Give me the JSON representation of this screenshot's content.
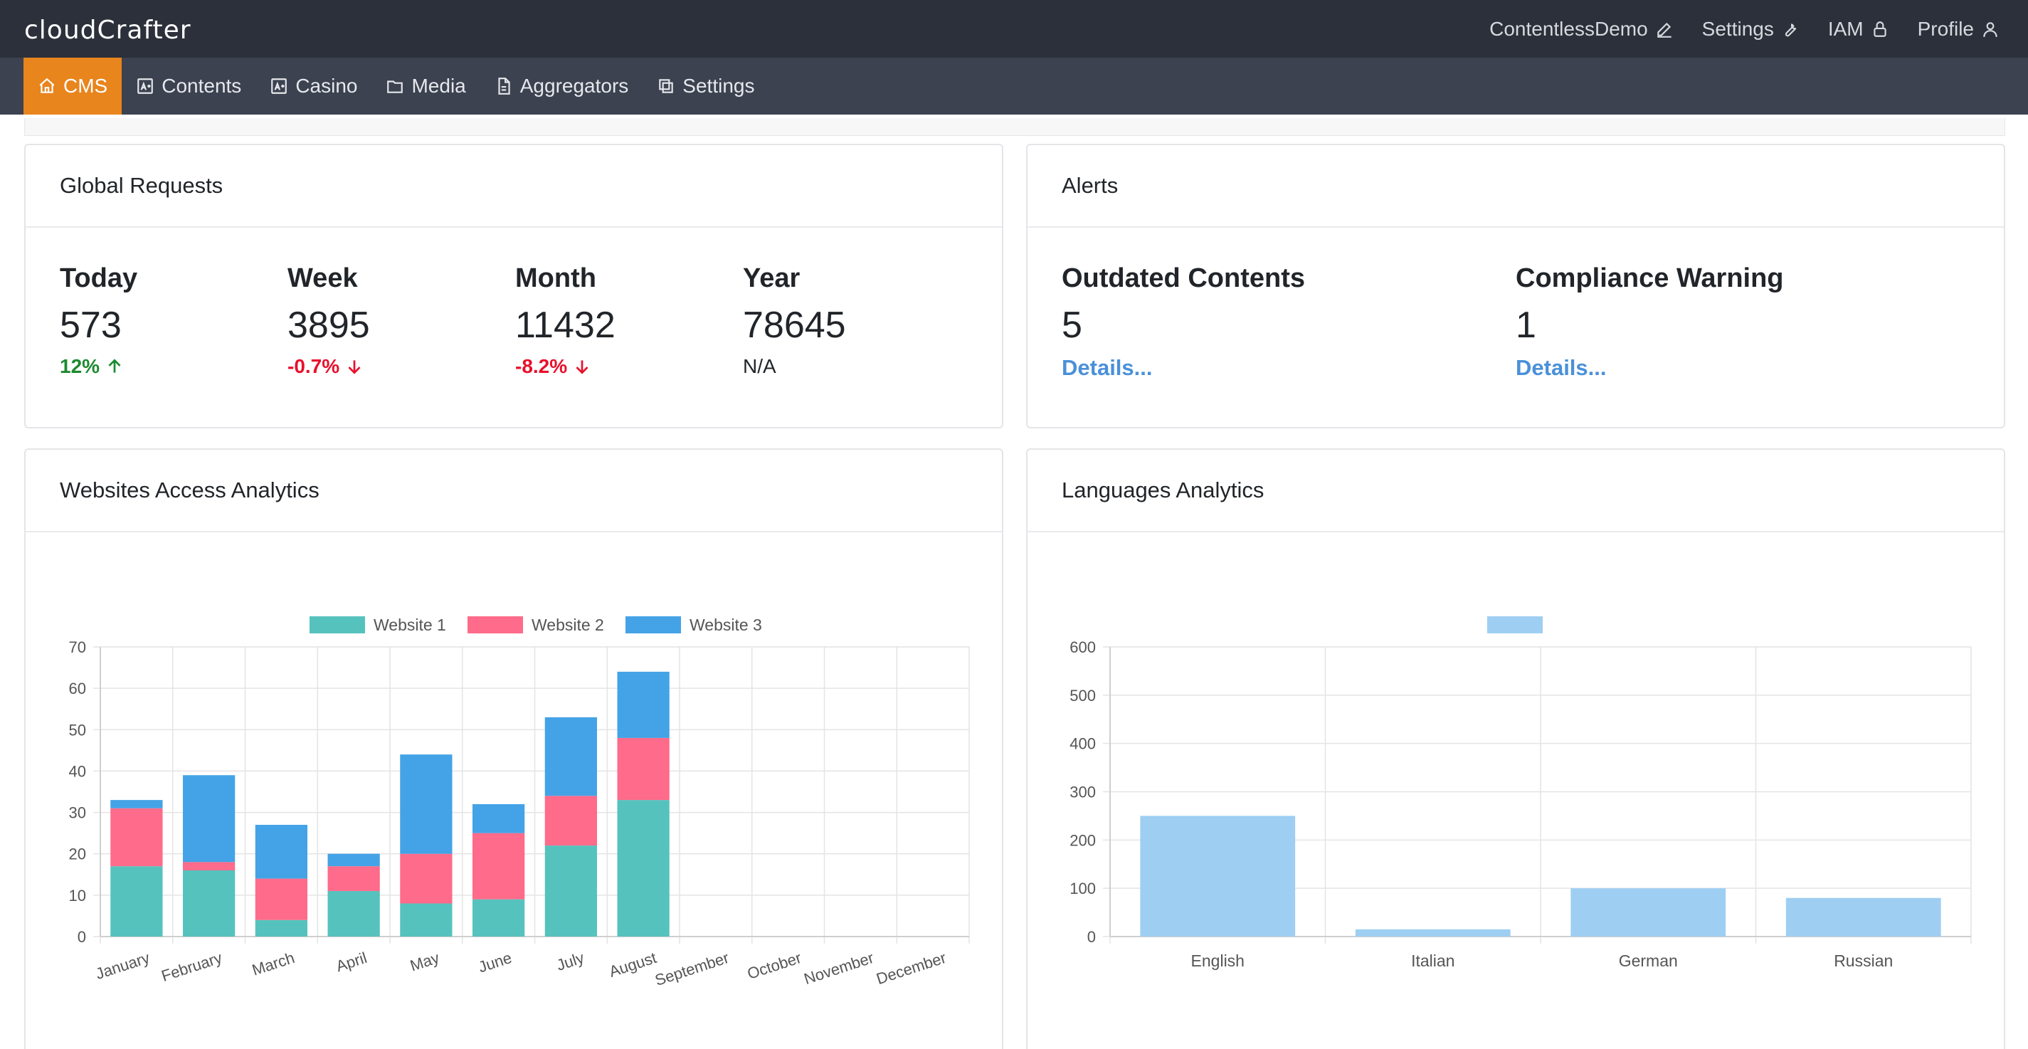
{
  "app": {
    "logo": "cloudCrafter"
  },
  "topnav": [
    {
      "label": "ContentlessDemo",
      "icon": "pencil-icon"
    },
    {
      "label": "Settings",
      "icon": "wrench-icon"
    },
    {
      "label": "IAM",
      "icon": "lock-icon"
    },
    {
      "label": "Profile",
      "icon": "user-icon"
    }
  ],
  "menu": [
    {
      "label": "CMS",
      "icon": "home-icon",
      "active": true
    },
    {
      "label": "Contents",
      "icon": "content-icon"
    },
    {
      "label": "Casino",
      "icon": "casino-icon"
    },
    {
      "label": "Media",
      "icon": "folder-icon"
    },
    {
      "label": "Aggregators",
      "icon": "file-icon"
    },
    {
      "label": "Settings",
      "icon": "copy-icon"
    }
  ],
  "global_requests": {
    "title": "Global Requests",
    "stats": [
      {
        "label": "Today",
        "value": "573",
        "change": "12%",
        "trend": "up"
      },
      {
        "label": "Week",
        "value": "3895",
        "change": "-0.7%",
        "trend": "down"
      },
      {
        "label": "Month",
        "value": "11432",
        "change": "-8.2%",
        "trend": "down"
      },
      {
        "label": "Year",
        "value": "78645",
        "change": "N/A",
        "trend": "none"
      }
    ]
  },
  "alerts": {
    "title": "Alerts",
    "items": [
      {
        "label": "Outdated Contents",
        "value": "5",
        "link": "Details..."
      },
      {
        "label": "Compliance Warning",
        "value": "1",
        "link": "Details..."
      }
    ]
  },
  "websites_card": {
    "title": "Websites Access Analytics"
  },
  "languages_card": {
    "title": "Languages Analytics"
  },
  "colors": {
    "accent": "#e8851d",
    "up": "#1c8a2e",
    "down": "#e8102b",
    "link": "#4a90d9"
  },
  "chart_data": [
    {
      "type": "bar",
      "stacked": true,
      "categories": [
        "January",
        "February",
        "March",
        "April",
        "May",
        "June",
        "July",
        "August",
        "September",
        "October",
        "November",
        "December"
      ],
      "series": [
        {
          "name": "Website 1",
          "color": "#56c2be",
          "values": [
            17,
            16,
            4,
            11,
            8,
            9,
            22,
            33,
            null,
            null,
            null,
            null
          ]
        },
        {
          "name": "Website 2",
          "color": "#ff6b8a",
          "values": [
            14,
            2,
            10,
            6,
            12,
            16,
            12,
            15,
            null,
            null,
            null,
            null
          ]
        },
        {
          "name": "Website 3",
          "color": "#44a3e6",
          "values": [
            2,
            21,
            13,
            3,
            24,
            7,
            19,
            16,
            null,
            null,
            null,
            null
          ]
        }
      ],
      "ylim": [
        0,
        70
      ],
      "yticks": [
        0,
        10,
        20,
        30,
        40,
        50,
        60,
        70
      ],
      "legend": "top",
      "grid": true
    },
    {
      "type": "bar",
      "categories": [
        "English",
        "Italian",
        "German",
        "Russian"
      ],
      "series": [
        {
          "color": "#9ecff2",
          "values": [
            250,
            15,
            100,
            80
          ]
        }
      ],
      "ylim": [
        0,
        600
      ],
      "yticks": [
        0,
        100,
        200,
        300,
        400,
        500,
        600
      ],
      "legend": "top",
      "grid": true
    }
  ]
}
